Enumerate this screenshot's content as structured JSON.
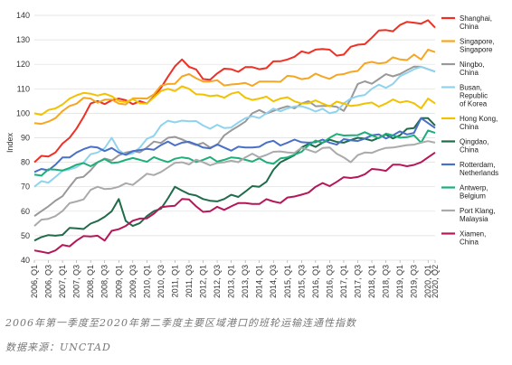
{
  "chart_data": {
    "type": "line",
    "ylabel": "Index",
    "ylim": [
      40,
      140
    ],
    "yticks": [
      40,
      50,
      60,
      70,
      80,
      90,
      100,
      110,
      120,
      130,
      140
    ],
    "grid": "horizontal",
    "legend_position": "right",
    "quarters": [
      "2006, Q1",
      "2006, Q2",
      "2006, Q3",
      "2006, Q4",
      "2007, Q1",
      "2007, Q2",
      "2007, Q3",
      "2007, Q4",
      "2008, Q1",
      "2008, Q2",
      "2008, Q3",
      "2008, Q4",
      "2009, Q1",
      "2009, Q2",
      "2009, Q3",
      "2009, Q4",
      "2010, Q1",
      "2010, Q2",
      "2010, Q3",
      "2010, Q4",
      "2011, Q1",
      "2011, Q2",
      "2011, Q3",
      "2011, Q4",
      "2012, Q1",
      "2012, Q2",
      "2012, Q3",
      "2012, Q4",
      "2013, Q1",
      "2013, Q2",
      "2013, Q3",
      "2013, Q4",
      "2014, Q1",
      "2014, Q2",
      "2014, Q3",
      "2014, Q4",
      "2015, Q1",
      "2015, Q2",
      "2015, Q3",
      "2015, Q4",
      "2016, Q1",
      "2016, Q2",
      "2016, Q3",
      "2016, Q4",
      "2017, Q1",
      "2017, Q2",
      "2017, Q3",
      "2017, Q4",
      "2018, Q1",
      "2018, Q2",
      "2018, Q3",
      "2018, Q4",
      "2019, Q1",
      "2019, Q2",
      "2019, Q3",
      "2019, Q4",
      "2020, Q1",
      "2020, Q2"
    ],
    "xtick_labels": [
      "2006, Q1",
      "2006, Q3",
      "2007, Q1",
      "2007, Q3",
      "2008, Q1",
      "2008, Q3",
      "2009, Q1",
      "2009, Q3",
      "2010, Q1",
      "2010, Q3",
      "2011, Q1",
      "2011, Q3",
      "2012, Q1",
      "2012, Q3",
      "2013, Q1",
      "2013, Q3",
      "2014, Q1",
      "2014, Q3",
      "2015, Q1",
      "2015, Q3",
      "2016, Q1",
      "2016, Q3",
      "2017, Q1",
      "2017, Q3",
      "2018, Q1",
      "2018, Q3",
      "2019, Q1",
      "2019, Q3",
      "2020, Q1",
      "2020, Q2"
    ],
    "series": [
      {
        "name": "Shanghai,\nChina",
        "color": "#ee3124",
        "key_points": [
          [
            0,
            80
          ],
          [
            3,
            84
          ],
          [
            5,
            90
          ],
          [
            8,
            104
          ],
          [
            12,
            106
          ],
          [
            16,
            104
          ],
          [
            19,
            115
          ],
          [
            21,
            122
          ],
          [
            24,
            114
          ],
          [
            28,
            118
          ],
          [
            32,
            118
          ],
          [
            36,
            122
          ],
          [
            40,
            126
          ],
          [
            44,
            124
          ],
          [
            46,
            128
          ],
          [
            50,
            134
          ],
          [
            54,
            137
          ],
          [
            56,
            138
          ],
          [
            57,
            135
          ]
        ]
      },
      {
        "name": "Singapore,\nSingapore",
        "color": "#f5a623",
        "key_points": [
          [
            0,
            96
          ],
          [
            3,
            98
          ],
          [
            5,
            103
          ],
          [
            8,
            106
          ],
          [
            12,
            104
          ],
          [
            16,
            106
          ],
          [
            19,
            112
          ],
          [
            22,
            116
          ],
          [
            25,
            113
          ],
          [
            29,
            112
          ],
          [
            33,
            113
          ],
          [
            37,
            115
          ],
          [
            41,
            115
          ],
          [
            44,
            116
          ],
          [
            48,
            121
          ],
          [
            52,
            122
          ],
          [
            54,
            124
          ],
          [
            55,
            122
          ],
          [
            56,
            126
          ],
          [
            57,
            125
          ]
        ]
      },
      {
        "name": "Ningbo,\nChina",
        "color": "#999999",
        "key_points": [
          [
            0,
            58
          ],
          [
            2,
            62
          ],
          [
            5,
            70
          ],
          [
            9,
            80
          ],
          [
            13,
            84
          ],
          [
            16,
            86
          ],
          [
            19,
            90
          ],
          [
            22,
            88
          ],
          [
            25,
            86
          ],
          [
            28,
            93
          ],
          [
            31,
            100
          ],
          [
            35,
            102
          ],
          [
            38,
            104
          ],
          [
            41,
            103
          ],
          [
            44,
            101
          ],
          [
            46,
            112
          ],
          [
            49,
            114
          ],
          [
            52,
            116
          ],
          [
            55,
            119
          ],
          [
            56,
            118
          ],
          [
            57,
            117
          ]
        ]
      },
      {
        "name": "Busan,\nRepublic\nof Korea",
        "color": "#8fd3ee",
        "key_points": [
          [
            0,
            70
          ],
          [
            3,
            74
          ],
          [
            6,
            78
          ],
          [
            9,
            84
          ],
          [
            11,
            90
          ],
          [
            12,
            85
          ],
          [
            13,
            83
          ],
          [
            15,
            86
          ],
          [
            18,
            95
          ],
          [
            21,
            97
          ],
          [
            24,
            95
          ],
          [
            27,
            94
          ],
          [
            30,
            98
          ],
          [
            33,
            100
          ],
          [
            36,
            102
          ],
          [
            39,
            102
          ],
          [
            42,
            100
          ],
          [
            45,
            106
          ],
          [
            48,
            110
          ],
          [
            51,
            112
          ],
          [
            54,
            118
          ],
          [
            55,
            119
          ],
          [
            56,
            118
          ],
          [
            57,
            117
          ]
        ]
      },
      {
        "name": "Hong Kong,\nChina",
        "color": "#f2c200",
        "key_points": [
          [
            0,
            100
          ],
          [
            3,
            102
          ],
          [
            5,
            106
          ],
          [
            8,
            108
          ],
          [
            10,
            108
          ],
          [
            12,
            105
          ],
          [
            16,
            104
          ],
          [
            19,
            110
          ],
          [
            22,
            110
          ],
          [
            25,
            107
          ],
          [
            28,
            108
          ],
          [
            32,
            106
          ],
          [
            35,
            106
          ],
          [
            38,
            104
          ],
          [
            41,
            104
          ],
          [
            44,
            104
          ],
          [
            47,
            104
          ],
          [
            50,
            104
          ],
          [
            53,
            105
          ],
          [
            55,
            102
          ],
          [
            56,
            106
          ],
          [
            57,
            104
          ]
        ]
      },
      {
        "name": "Qingdao,\nChina",
        "color": "#1f6b4a",
        "key_points": [
          [
            0,
            48
          ],
          [
            3,
            50
          ],
          [
            6,
            53
          ],
          [
            9,
            56
          ],
          [
            11,
            60
          ],
          [
            12,
            65
          ],
          [
            13,
            56
          ],
          [
            14,
            54
          ],
          [
            16,
            58
          ],
          [
            18,
            61
          ],
          [
            20,
            70
          ],
          [
            22,
            67
          ],
          [
            24,
            65
          ],
          [
            27,
            65
          ],
          [
            30,
            68
          ],
          [
            32,
            70
          ],
          [
            35,
            80
          ],
          [
            38,
            86
          ],
          [
            41,
            88
          ],
          [
            44,
            88
          ],
          [
            46,
            90
          ],
          [
            49,
            90
          ],
          [
            52,
            91
          ],
          [
            54,
            94
          ],
          [
            55,
            98
          ],
          [
            56,
            98
          ],
          [
            57,
            95
          ]
        ]
      },
      {
        "name": "Rotterdam,\nNetherlands",
        "color": "#4a6fc7",
        "key_points": [
          [
            0,
            76
          ],
          [
            3,
            79
          ],
          [
            6,
            84
          ],
          [
            9,
            86
          ],
          [
            12,
            84
          ],
          [
            15,
            85
          ],
          [
            18,
            87
          ],
          [
            21,
            88
          ],
          [
            24,
            86
          ],
          [
            27,
            86
          ],
          [
            30,
            86
          ],
          [
            33,
            88
          ],
          [
            36,
            88
          ],
          [
            39,
            88
          ],
          [
            42,
            88
          ],
          [
            45,
            89
          ],
          [
            48,
            91
          ],
          [
            51,
            91
          ],
          [
            54,
            92
          ],
          [
            55,
            98
          ],
          [
            56,
            96
          ],
          [
            57,
            94
          ]
        ]
      },
      {
        "name": "Antwerp,\nBelgium",
        "color": "#1fae7a",
        "key_points": [
          [
            0,
            75
          ],
          [
            3,
            77
          ],
          [
            6,
            79
          ],
          [
            9,
            80
          ],
          [
            12,
            80
          ],
          [
            15,
            81
          ],
          [
            18,
            81
          ],
          [
            21,
            82
          ],
          [
            24,
            81
          ],
          [
            27,
            81
          ],
          [
            30,
            81
          ],
          [
            33,
            80
          ],
          [
            36,
            82
          ],
          [
            39,
            87
          ],
          [
            42,
            90
          ],
          [
            45,
            91
          ],
          [
            48,
            91
          ],
          [
            51,
            91
          ],
          [
            54,
            91
          ],
          [
            55,
            88
          ],
          [
            56,
            93
          ],
          [
            57,
            92
          ]
        ]
      },
      {
        "name": "Port Klang,\nMalaysia",
        "color": "#aaaaaa",
        "key_points": [
          [
            0,
            54
          ],
          [
            3,
            58
          ],
          [
            6,
            64
          ],
          [
            9,
            70
          ],
          [
            12,
            70
          ],
          [
            15,
            73
          ],
          [
            18,
            76
          ],
          [
            21,
            80
          ],
          [
            24,
            80
          ],
          [
            27,
            80
          ],
          [
            30,
            82
          ],
          [
            33,
            83
          ],
          [
            36,
            84
          ],
          [
            39,
            85
          ],
          [
            42,
            86
          ],
          [
            44,
            82
          ],
          [
            45,
            80
          ],
          [
            47,
            84
          ],
          [
            49,
            85
          ],
          [
            51,
            86
          ],
          [
            53,
            87
          ],
          [
            55,
            88
          ],
          [
            57,
            88
          ]
        ]
      },
      {
        "name": "Xiamen,\nChina",
        "color": "#b5175b",
        "key_points": [
          [
            0,
            44
          ],
          [
            3,
            44
          ],
          [
            6,
            48
          ],
          [
            9,
            50
          ],
          [
            10,
            48
          ],
          [
            11,
            52
          ],
          [
            13,
            54
          ],
          [
            15,
            57
          ],
          [
            17,
            59
          ],
          [
            19,
            62
          ],
          [
            21,
            65
          ],
          [
            23,
            62
          ],
          [
            25,
            60
          ],
          [
            28,
            62
          ],
          [
            31,
            63
          ],
          [
            34,
            64
          ],
          [
            37,
            66
          ],
          [
            40,
            70
          ],
          [
            43,
            72
          ],
          [
            46,
            74
          ],
          [
            49,
            77
          ],
          [
            52,
            79
          ],
          [
            55,
            80
          ],
          [
            56,
            82
          ],
          [
            57,
            84
          ]
        ]
      }
    ]
  },
  "caption": {
    "line1": "2006年第一季度至2020年第二季度主要区域港口的班轮运输连通性指数",
    "line2": "数据来源：UNCTAD"
  }
}
